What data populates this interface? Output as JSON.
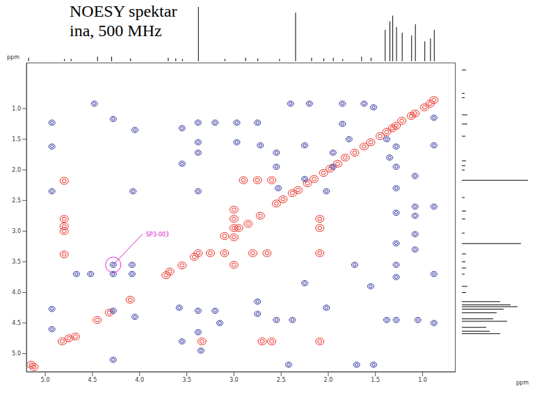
{
  "chart_data": {
    "type": "scatter",
    "title": "NOESY spektar",
    "subtitle": "ina, 500 MHz",
    "x_label": "ppm",
    "y_label": "ppm",
    "xlim": [
      5.2,
      0.65
    ],
    "ylim": [
      5.3,
      0.25
    ],
    "xticks": [
      {
        "value": 5,
        "label": "5.0"
      },
      {
        "value": 4.5,
        "label": "4.5"
      },
      {
        "value": 4,
        "label": "4.0"
      },
      {
        "value": 3.5,
        "label": "3.5"
      },
      {
        "value": 3,
        "label": "3.0"
      },
      {
        "value": 2.5,
        "label": "2.5"
      },
      {
        "value": 2,
        "label": "2.0"
      },
      {
        "value": 1.5,
        "label": "1.5"
      },
      {
        "value": 1,
        "label": "1.0"
      }
    ],
    "yticks": [
      {
        "value": 1,
        "label": "1.0"
      },
      {
        "value": 1.5,
        "label": "1.5"
      },
      {
        "value": 2,
        "label": "2.0"
      },
      {
        "value": 2.5,
        "label": "2.5"
      },
      {
        "value": 3,
        "label": "3.0"
      },
      {
        "value": 3.5,
        "label": "3.5"
      },
      {
        "value": 4,
        "label": "4.0"
      },
      {
        "value": 4.5,
        "label": "4.5"
      },
      {
        "value": 5,
        "label": "5.0"
      }
    ],
    "grid": false,
    "marker": "contour",
    "series": [
      {
        "color": "#e8281e",
        "x": [
          5.15,
          5.12,
          4.82,
          4.75,
          4.68,
          4.45,
          4.32,
          4.1,
          3.72,
          3.68,
          3.55,
          3.42,
          3.38,
          3.1,
          2.95,
          2.85,
          2.72,
          2.55,
          2.48,
          2.38,
          2.32,
          2.22,
          2.15,
          2.05,
          1.98,
          1.9,
          1.82,
          1.72,
          1.62,
          1.55,
          1.45,
          1.38,
          1.32,
          1.28,
          1.22,
          1.12,
          1.08,
          0.98,
          0.92,
          0.88,
          4.8,
          4.8,
          4.8,
          4.8,
          4.8,
          3.0,
          3.0,
          3.0,
          3.0,
          3.0,
          3.25,
          3.1,
          2.8,
          2.65,
          2.9,
          2.75,
          2.6,
          2.7,
          2.6,
          3.34,
          2.09,
          2.09,
          2.09,
          2.09
        ],
        "values": [
          5.18,
          5.22,
          4.8,
          4.75,
          4.72,
          4.45,
          4.33,
          4.12,
          3.72,
          3.66,
          3.56,
          3.42,
          3.36,
          3.08,
          2.95,
          2.88,
          2.75,
          2.55,
          2.48,
          2.38,
          2.33,
          2.22,
          2.15,
          2.05,
          1.98,
          1.9,
          1.8,
          1.72,
          1.62,
          1.55,
          1.45,
          1.38,
          1.32,
          1.28,
          1.2,
          1.12,
          1.08,
          0.98,
          0.92,
          0.86,
          2.18,
          2.8,
          2.92,
          3.0,
          3.38,
          2.65,
          2.8,
          2.95,
          3.1,
          3.55,
          3.36,
          3.36,
          3.36,
          3.36,
          2.17,
          2.17,
          2.17,
          4.8,
          4.8,
          4.8,
          4.8,
          2.8,
          2.95,
          3.36
        ]
      },
      {
        "color": "#2a2f9a",
        "x": [
          4.93,
          4.93,
          4.93,
          4.93,
          4.93,
          4.48,
          4.28,
          4.05,
          4.07,
          4.67,
          4.52,
          4.28,
          4.08,
          4.28,
          4.08,
          4.28,
          4.28,
          4.05,
          3.55,
          3.55,
          3.38,
          3.38,
          3.38,
          3.38,
          3.2,
          2.97,
          2.97,
          2.75,
          2.72,
          2.55,
          2.55,
          2.53,
          2.4,
          2.25,
          2.25,
          2.2,
          2.02,
          1.95,
          1.95,
          1.85,
          1.85,
          1.78,
          1.62,
          1.52,
          1.38,
          1.35,
          1.28,
          1.28,
          1.28,
          1.28,
          1.28,
          1.28,
          1.28,
          1.28,
          1.08,
          1.08,
          1.08,
          1.08,
          1.08,
          0.88,
          0.88,
          0.88,
          0.88,
          0.88,
          3.58,
          3.38,
          3.2,
          3.15,
          2.75,
          2.75,
          2.55,
          2.38,
          2.02,
          1.38,
          1.05,
          1.72,
          1.55,
          2.25,
          3.55,
          3.38,
          3.35,
          2.42,
          1.7,
          1.52
        ],
        "values": [
          1.23,
          1.62,
          2.35,
          4.27,
          4.6,
          0.92,
          1.17,
          1.35,
          2.35,
          3.7,
          3.7,
          3.7,
          3.7,
          3.55,
          3.55,
          4.3,
          5.1,
          4.4,
          1.32,
          1.9,
          1.23,
          1.55,
          1.72,
          2.35,
          1.23,
          1.23,
          1.55,
          1.23,
          1.6,
          1.72,
          1.95,
          2.3,
          0.92,
          1.6,
          2.15,
          0.92,
          2.35,
          1.72,
          1.95,
          0.92,
          1.25,
          1.5,
          0.92,
          0.98,
          1.5,
          1.8,
          1.62,
          1.95,
          2.3,
          2.7,
          3.2,
          3.55,
          3.75,
          4.45,
          2.1,
          2.6,
          2.75,
          3.05,
          3.3,
          1.15,
          1.6,
          2.6,
          3.7,
          4.5,
          4.25,
          4.3,
          4.3,
          4.5,
          4.15,
          4.35,
          4.45,
          4.45,
          4.25,
          4.45,
          4.45,
          3.55,
          3.9,
          3.85,
          4.8,
          4.65,
          4.95,
          5.18,
          5.18,
          5.18
        ]
      }
    ],
    "projection": {
      "color": "#000000",
      "x": [
        5.18,
        4.8,
        4.73,
        4.45,
        4.3,
        4.1,
        3.7,
        3.62,
        3.55,
        3.38,
        3.1,
        2.88,
        2.75,
        2.52,
        2.35,
        2.18,
        2.05,
        1.95,
        1.85,
        1.65,
        1.55,
        1.4,
        1.35,
        1.32,
        1.28,
        1.22,
        1.12,
        1.08,
        0.98,
        0.92,
        0.88
      ],
      "values": [
        6,
        4,
        4,
        8,
        8,
        5,
        6,
        5,
        4,
        95,
        4,
        6,
        5,
        4,
        85,
        6,
        5,
        6,
        4,
        8,
        6,
        55,
        70,
        80,
        60,
        50,
        45,
        65,
        35,
        40,
        55
      ],
      "ylim": [
        0,
        100
      ]
    },
    "annotations": [
      {
        "text": "SP3-003",
        "x": 3.97,
        "y": 3.05,
        "target": [
          4.28,
          3.55
        ],
        "color": "#e020d0"
      }
    ]
  }
}
